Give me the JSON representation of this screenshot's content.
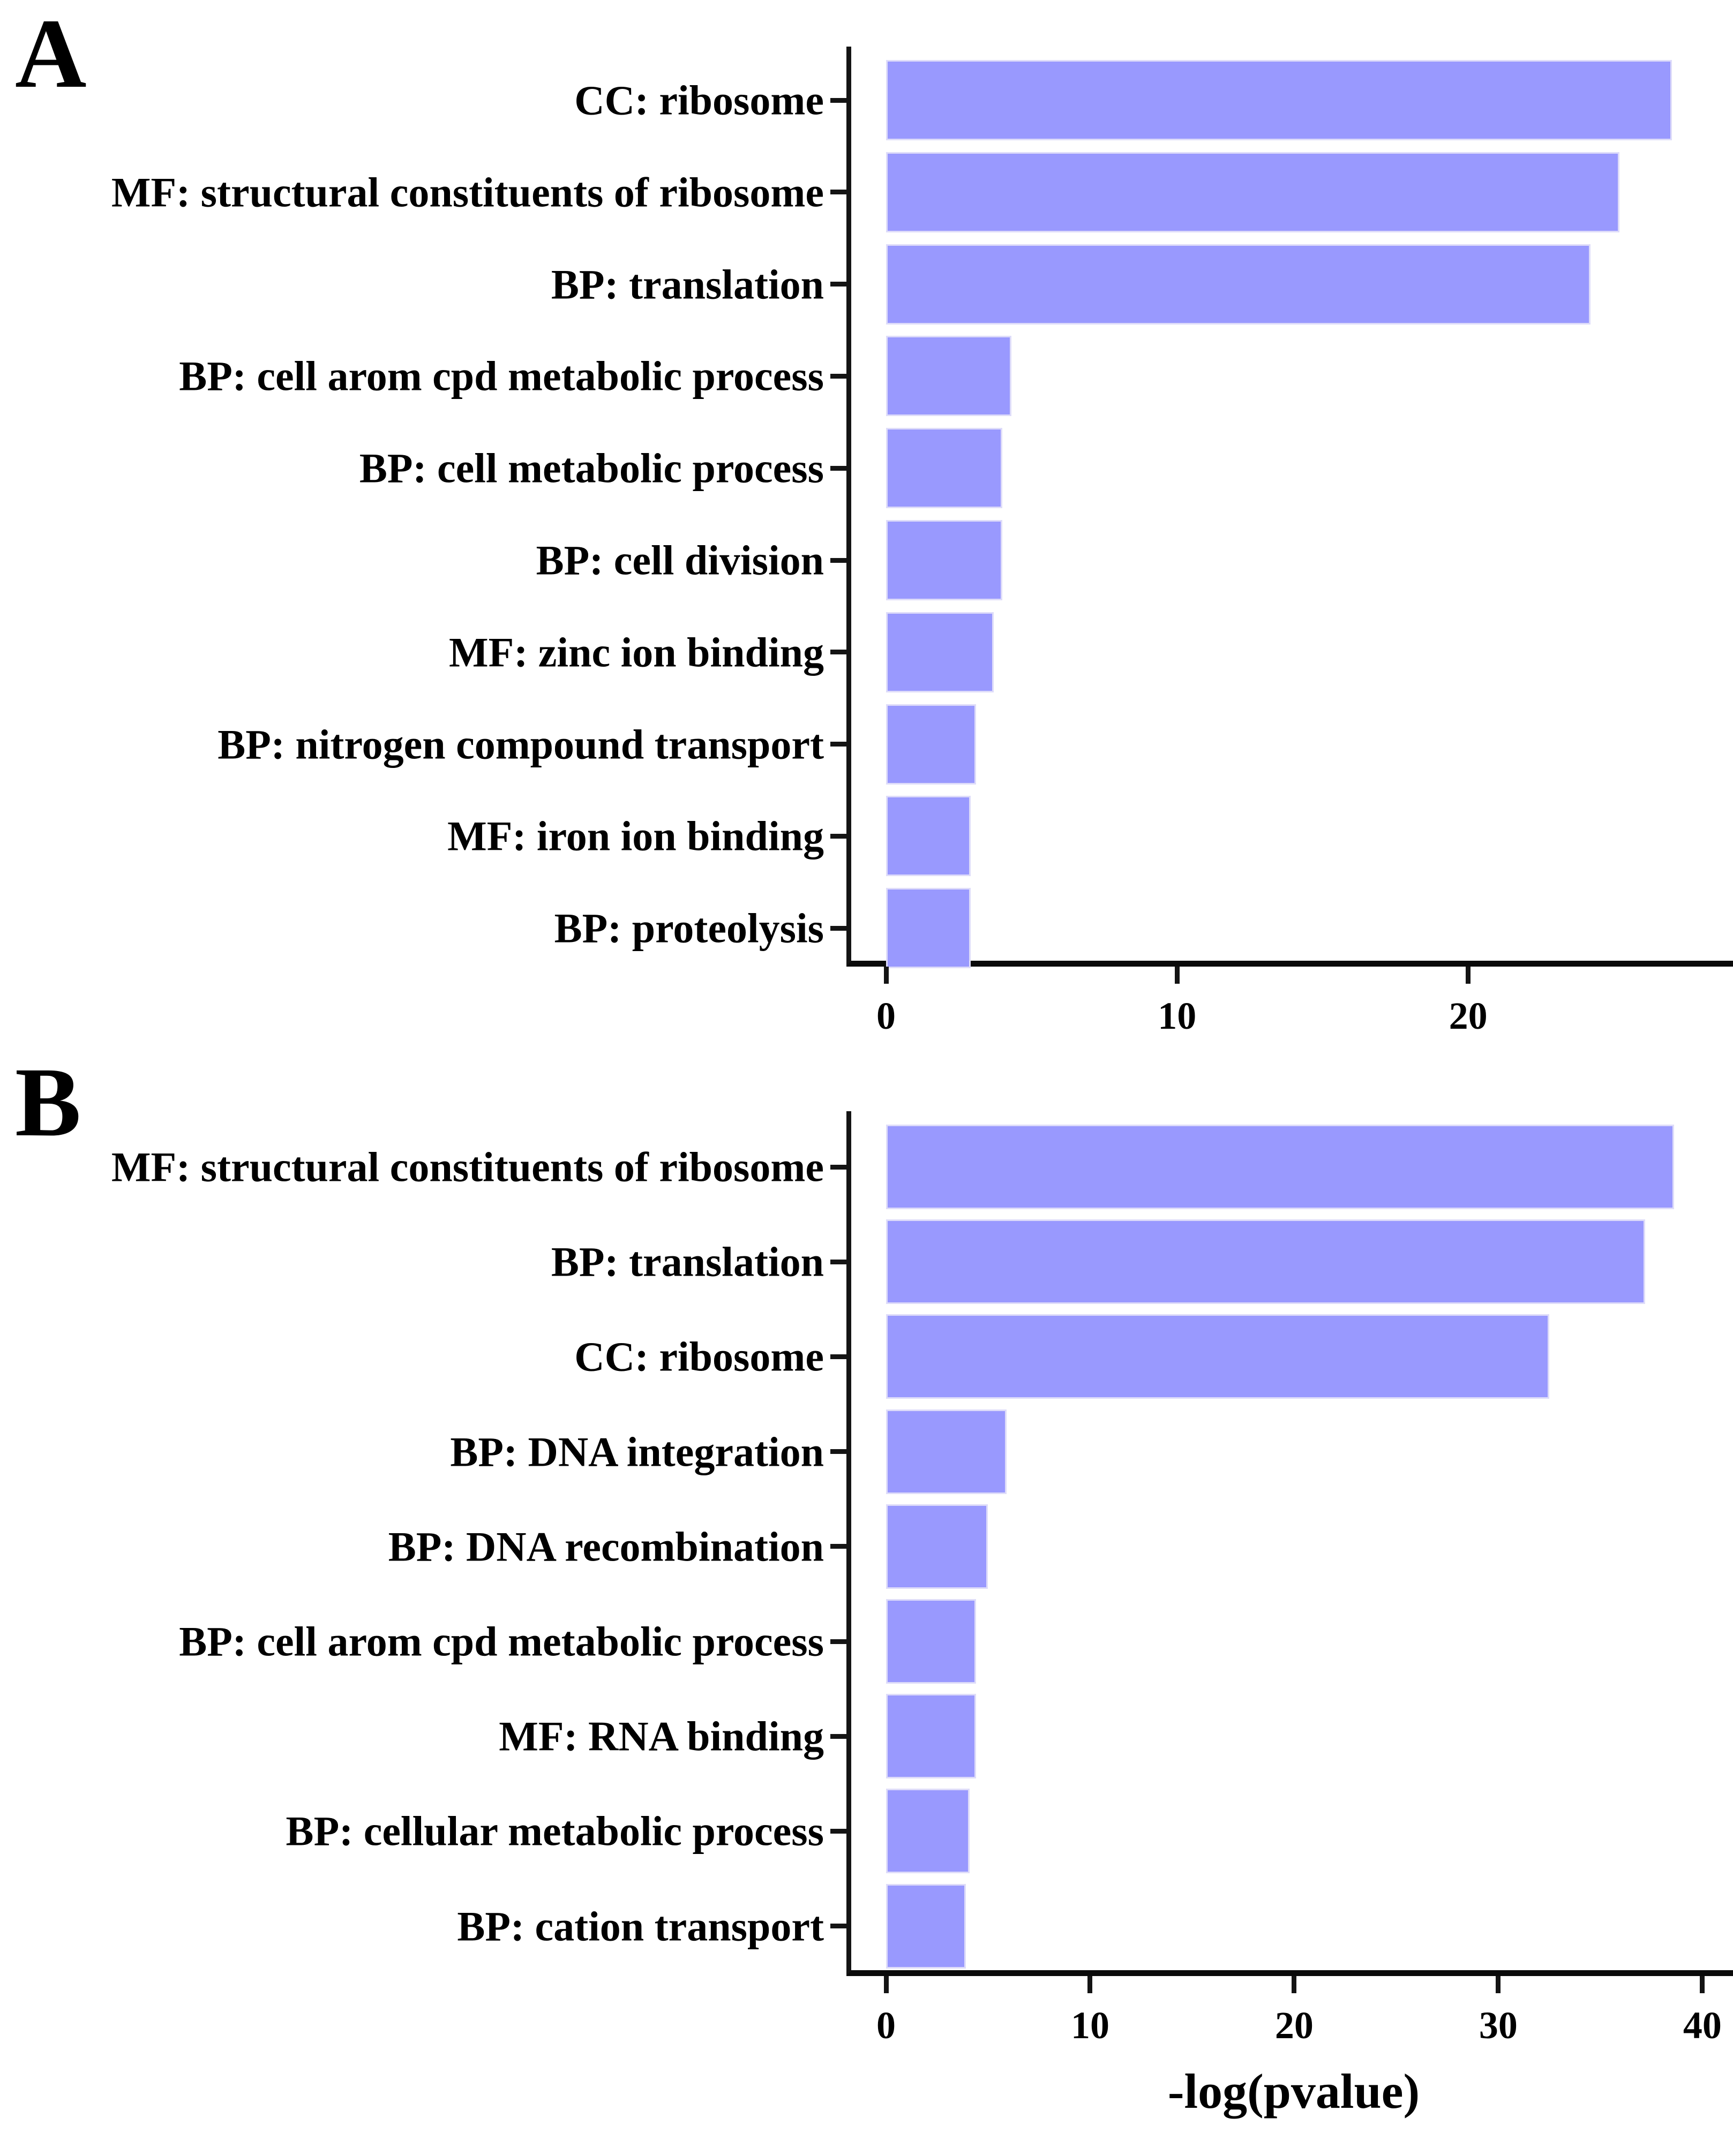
{
  "figure": {
    "background": "#ffffff",
    "bar_color": "#9999fe",
    "bar_border_color": "#dedcf9",
    "axis_color": "#141414",
    "text_color": "#000000"
  },
  "panels": [
    {
      "panel_label": "A"
    },
    {
      "panel_label": "B"
    }
  ],
  "chart_data": [
    {
      "type": "bar",
      "orientation": "horizontal",
      "panel": "A",
      "title": "",
      "xlabel": "",
      "ylabel": "",
      "categories": [
        "CC: ribosome",
        "MF: structural constituents of ribosome",
        "BP: translation",
        "BP: cell arom cpd metabolic process",
        "BP: cell metabolic process",
        "BP: cell division",
        "MF: zinc ion binding",
        "BP: nitrogen compound transport",
        "MF: iron ion binding",
        "BP: proteolysis"
      ],
      "values": [
        27.0,
        25.2,
        24.2,
        4.3,
        4.0,
        4.0,
        3.7,
        3.1,
        2.9,
        2.9
      ],
      "xlim": [
        0,
        29.1
      ],
      "x_ticks": [
        0,
        10,
        20
      ],
      "grid": false,
      "legend": "none"
    },
    {
      "type": "bar",
      "orientation": "horizontal",
      "panel": "B",
      "title": "",
      "xlabel": "-log(pvalue)",
      "ylabel": "",
      "categories": [
        "MF: structural constituents of ribosome",
        "BP: translation",
        "CC: ribosome",
        "BP: DNA integration",
        "BP: DNA recombination",
        "BP: cell arom cpd metabolic process",
        "MF: RNA binding",
        "BP: cellular metabolic process",
        "BP: cation transport"
      ],
      "values": [
        38.6,
        37.2,
        32.5,
        5.9,
        5.0,
        4.4,
        4.4,
        4.1,
        3.9
      ],
      "xlim": [
        0,
        41.5
      ],
      "x_ticks": [
        0,
        10,
        20,
        30,
        40
      ],
      "grid": false,
      "legend": "none"
    }
  ]
}
